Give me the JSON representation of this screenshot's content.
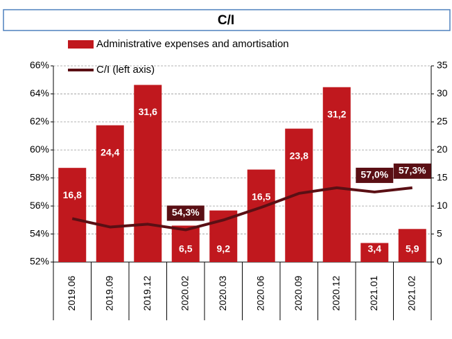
{
  "chart_data": {
    "type": "bar+line",
    "title": "C/I",
    "categories": [
      "2019.06",
      "2019.09",
      "2019.12",
      "2020.02",
      "2020.03",
      "2020.06",
      "2020.09",
      "2020.12",
      "2021.01",
      "2021.02"
    ],
    "series": [
      {
        "name": "Administrative expenses and amortisation",
        "type": "bar",
        "axis": "y2",
        "color": "#c0181e",
        "values": [
          16.8,
          24.4,
          31.6,
          6.5,
          9.2,
          16.5,
          23.8,
          31.2,
          3.4,
          5.9
        ],
        "value_labels": [
          "16,8",
          "24,4",
          "31,6",
          "6,5",
          "9,2",
          "16,5",
          "23,8",
          "31,2",
          "3,4",
          "5,9"
        ]
      },
      {
        "name": "C/I (left axis)",
        "type": "line",
        "axis": "y",
        "color": "#5a0f14",
        "values": [
          55.1,
          54.5,
          54.7,
          54.3,
          55.0,
          55.9,
          56.9,
          57.3,
          57.0,
          57.3
        ],
        "value_labels": [
          null,
          null,
          null,
          "54,3%",
          null,
          null,
          null,
          null,
          "57,0%",
          "57,3%"
        ]
      }
    ],
    "ylim": [
      52,
      66
    ],
    "yticks": [
      {
        "value": 52,
        "label": "52%"
      },
      {
        "value": 54,
        "label": "54%"
      },
      {
        "value": 56,
        "label": "56%"
      },
      {
        "value": 58,
        "label": "58%"
      },
      {
        "value": 60,
        "label": "60%"
      },
      {
        "value": 62,
        "label": "62%"
      },
      {
        "value": 64,
        "label": "64%"
      },
      {
        "value": 66,
        "label": "66%"
      }
    ],
    "y2lim": [
      0,
      35
    ],
    "y2ticks": [
      0,
      5,
      10,
      15,
      20,
      25,
      30,
      35
    ],
    "grid": true
  }
}
